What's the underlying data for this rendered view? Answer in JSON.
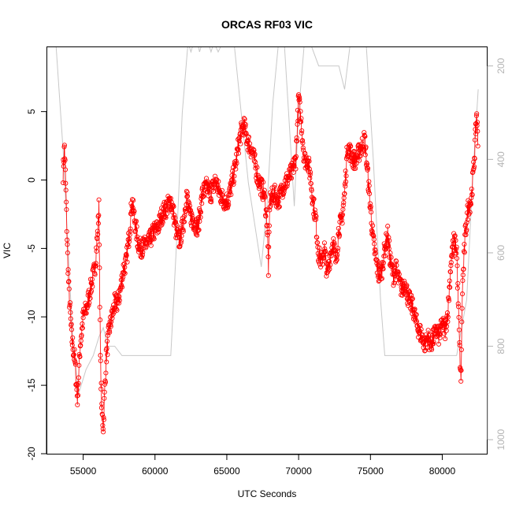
{
  "chart_data": {
    "type": "scatter",
    "title": "ORCAS RF03 VIC",
    "xlabel": "UTC Seconds",
    "ylabel": "VIC",
    "xlim": [
      52500,
      83100
    ],
    "ylim": [
      -20,
      9.7
    ],
    "x_ticks": [
      55000,
      60000,
      65000,
      70000,
      75000,
      80000
    ],
    "y_ticks": [
      -20,
      -15,
      -10,
      -5,
      0,
      5
    ],
    "right_axis": {
      "ylim": [
        1030,
        160
      ],
      "ticks": [
        200,
        400,
        600,
        800,
        1000
      ],
      "color": "#b3b3b3"
    },
    "grid": false,
    "legend": "none",
    "series": [
      {
        "color": "#ff0000",
        "marker": "open-circle",
        "anchors": [
          [
            53600,
            0.5
          ],
          [
            53700,
            2.5
          ],
          [
            53800,
            -1
          ],
          [
            53900,
            -5
          ],
          [
            54000,
            -8
          ],
          [
            54200,
            -11.5
          ],
          [
            54400,
            -13
          ],
          [
            54600,
            -16
          ],
          [
            54800,
            -12
          ],
          [
            55000,
            -10
          ],
          [
            55200,
            -9.5
          ],
          [
            55400,
            -8.5
          ],
          [
            55600,
            -7.5
          ],
          [
            55800,
            -6.5
          ],
          [
            56000,
            -4
          ],
          [
            56100,
            -2
          ],
          [
            56200,
            -13
          ],
          [
            56300,
            -17
          ],
          [
            56400,
            -18
          ],
          [
            56600,
            -13
          ],
          [
            56800,
            -11
          ],
          [
            57000,
            -10
          ],
          [
            57200,
            -9
          ],
          [
            57400,
            -9
          ],
          [
            57600,
            -8
          ],
          [
            57800,
            -6.5
          ],
          [
            58000,
            -6
          ],
          [
            58200,
            -4
          ],
          [
            58400,
            -1.5
          ],
          [
            58600,
            -3
          ],
          [
            58800,
            -4.5
          ],
          [
            59000,
            -5
          ],
          [
            59300,
            -4.8
          ],
          [
            59600,
            -4.5
          ],
          [
            59900,
            -3.8
          ],
          [
            60200,
            -3.5
          ],
          [
            60500,
            -2.5
          ],
          [
            60800,
            -2
          ],
          [
            61100,
            -1.5
          ],
          [
            61300,
            -2.5
          ],
          [
            61500,
            -4
          ],
          [
            61700,
            -4.5
          ],
          [
            62000,
            -3
          ],
          [
            62200,
            -1
          ],
          [
            62400,
            -2.5
          ],
          [
            62700,
            -3
          ],
          [
            63000,
            -3.5
          ],
          [
            63300,
            -1
          ],
          [
            63600,
            -0.5
          ],
          [
            63900,
            -1
          ],
          [
            64200,
            0
          ],
          [
            64500,
            -1
          ],
          [
            64800,
            -1.5
          ],
          [
            65100,
            -1.5
          ],
          [
            65400,
            0
          ],
          [
            65600,
            1
          ],
          [
            65800,
            2.5
          ],
          [
            66000,
            3.5
          ],
          [
            66200,
            4
          ],
          [
            66400,
            3
          ],
          [
            66600,
            2.5
          ],
          [
            66800,
            2
          ],
          [
            67000,
            1
          ],
          [
            67200,
            0
          ],
          [
            67400,
            -0.5
          ],
          [
            67600,
            -1
          ],
          [
            67800,
            -3
          ],
          [
            67900,
            -6.5
          ],
          [
            68000,
            -1.5
          ],
          [
            68300,
            -1
          ],
          [
            68600,
            -1.5
          ],
          [
            68900,
            -0.5
          ],
          [
            69200,
            0
          ],
          [
            69500,
            0.5
          ],
          [
            69800,
            1.5
          ],
          [
            70000,
            6
          ],
          [
            70200,
            4
          ],
          [
            70400,
            1.5
          ],
          [
            70600,
            1.5
          ],
          [
            70800,
            0.5
          ],
          [
            71000,
            -1.5
          ],
          [
            71200,
            -3
          ],
          [
            71400,
            -5.5
          ],
          [
            71600,
            -6
          ],
          [
            71800,
            -5
          ],
          [
            72000,
            -7
          ],
          [
            72200,
            -5.5
          ],
          [
            72400,
            -4.5
          ],
          [
            72600,
            -6
          ],
          [
            72800,
            -3.5
          ],
          [
            73000,
            -3
          ],
          [
            73200,
            -1
          ],
          [
            73400,
            2.5
          ],
          [
            73600,
            2
          ],
          [
            73800,
            1.5
          ],
          [
            74000,
            1.5
          ],
          [
            74200,
            2
          ],
          [
            74400,
            2.5
          ],
          [
            74600,
            3
          ],
          [
            74800,
            0.5
          ],
          [
            75000,
            -2
          ],
          [
            75200,
            -4.5
          ],
          [
            75400,
            -6
          ],
          [
            75600,
            -7
          ],
          [
            75800,
            -6.5
          ],
          [
            76000,
            -5
          ],
          [
            76200,
            -4
          ],
          [
            76400,
            -6
          ],
          [
            76600,
            -7
          ],
          [
            76800,
            -6.5
          ],
          [
            77000,
            -7.5
          ],
          [
            77200,
            -8
          ],
          [
            77400,
            -7.5
          ],
          [
            77600,
            -8.5
          ],
          [
            77800,
            -9
          ],
          [
            78000,
            -9.5
          ],
          [
            78200,
            -10.5
          ],
          [
            78400,
            -11
          ],
          [
            78600,
            -11.5
          ],
          [
            78800,
            -12
          ],
          [
            79000,
            -11.5
          ],
          [
            79200,
            -12
          ],
          [
            79400,
            -11.5
          ],
          [
            79600,
            -11
          ],
          [
            79800,
            -11.5
          ],
          [
            80000,
            -10.5
          ],
          [
            80200,
            -11
          ],
          [
            80400,
            -9.5
          ],
          [
            80600,
            -6
          ],
          [
            80800,
            -4.5
          ],
          [
            81000,
            -5
          ],
          [
            81200,
            -12
          ],
          [
            81300,
            -15
          ],
          [
            81400,
            -8
          ],
          [
            81600,
            -4
          ],
          [
            81800,
            -2
          ],
          [
            82000,
            -1.5
          ],
          [
            82200,
            1
          ],
          [
            82300,
            3
          ],
          [
            82400,
            5
          ],
          [
            82500,
            2
          ]
        ]
      }
    ],
    "overlay_line": {
      "color": "#c8c8c8",
      "axis": "right",
      "points": [
        [
          53100,
          150
        ],
        [
          53600,
          380
        ],
        [
          53900,
          560
        ],
        [
          54300,
          800
        ],
        [
          54700,
          900
        ],
        [
          55200,
          850
        ],
        [
          55700,
          820
        ],
        [
          56100,
          780
        ],
        [
          56400,
          760
        ],
        [
          56700,
          800
        ],
        [
          57200,
          800
        ],
        [
          57700,
          820
        ],
        [
          58500,
          820
        ],
        [
          59500,
          820
        ],
        [
          60500,
          820
        ],
        [
          61100,
          820
        ],
        [
          61500,
          580
        ],
        [
          61900,
          300
        ],
        [
          62300,
          150
        ],
        [
          62500,
          170
        ],
        [
          62700,
          150
        ],
        [
          62900,
          140
        ],
        [
          63100,
          170
        ],
        [
          63300,
          150
        ],
        [
          63600,
          140
        ],
        [
          63900,
          170
        ],
        [
          64100,
          150
        ],
        [
          64400,
          170
        ],
        [
          64700,
          150
        ],
        [
          65000,
          140
        ],
        [
          65500,
          150
        ],
        [
          66000,
          300
        ],
        [
          66500,
          450
        ],
        [
          67000,
          550
        ],
        [
          67400,
          630
        ],
        [
          67800,
          500
        ],
        [
          68200,
          280
        ],
        [
          68600,
          150
        ],
        [
          69000,
          150
        ],
        [
          69400,
          350
        ],
        [
          69700,
          500
        ],
        [
          70000,
          300
        ],
        [
          70400,
          150
        ],
        [
          70800,
          150
        ],
        [
          71400,
          200
        ],
        [
          72000,
          200
        ],
        [
          72800,
          200
        ],
        [
          73200,
          250
        ],
        [
          73600,
          150
        ],
        [
          74200,
          150
        ],
        [
          74700,
          150
        ],
        [
          75200,
          400
        ],
        [
          75700,
          700
        ],
        [
          76000,
          820
        ],
        [
          77000,
          820
        ],
        [
          78000,
          820
        ],
        [
          79000,
          820
        ],
        [
          80000,
          820
        ],
        [
          81000,
          820
        ],
        [
          81700,
          700
        ],
        [
          82100,
          450
        ],
        [
          82500,
          250
        ]
      ]
    }
  }
}
